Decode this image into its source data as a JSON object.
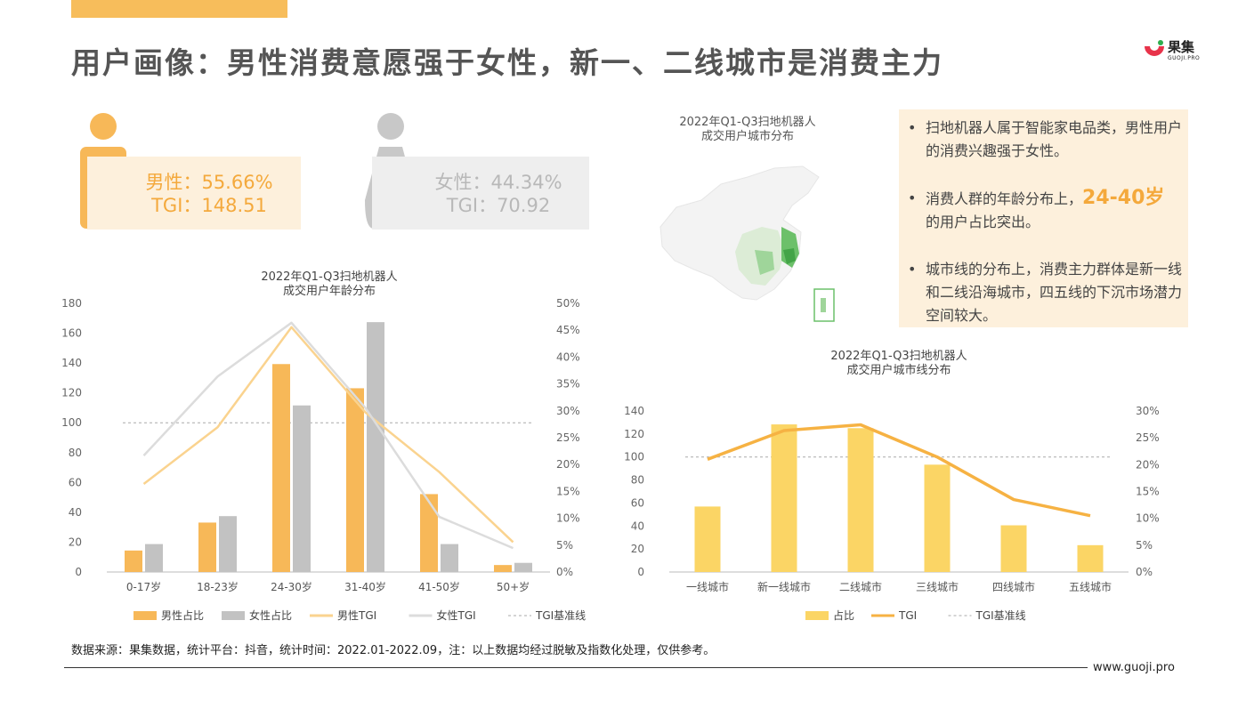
{
  "header": {
    "title": "用户画像：男性消费意愿强于女性，新一、二线城市是消费主力",
    "logo_name": "果集",
    "logo_sub": "GUOJI.PRO",
    "accent": "#f7bd5b"
  },
  "gender": {
    "male_line1": "男性：55.66%",
    "male_line2": "TGI：148.51",
    "female_line1": "女性：44.34%",
    "female_line2": "TGI：70.92",
    "male_color": "#f7b858",
    "female_color": "#c8c8c8"
  },
  "map": {
    "title_line1": "2022年Q1-Q3扫地机器人",
    "title_line2": "成交用户城市分布"
  },
  "notes": {
    "bullet": "•",
    "n1": "扫地机器人属于智能家电品类，男性用户的消费兴趣强于女性。",
    "n2_pre": "消费人群的年龄分布上，",
    "n2_hl": "24-40岁",
    "n2_post": "的用户占比突出。",
    "n3": "城市线的分布上，消费主力群体是新一线和二线沿海城市，四五线的下沉市场潜力空间较大。"
  },
  "footer": {
    "source": "数据来源：果集数据，统计平台：抖音，统计时间：2022.01-2022.09，注：以上数据均经过脱敏及指数化处理，仅供参考。",
    "site": "www.guoji.pro"
  },
  "chart_data": [
    {
      "type": "bar",
      "title_line1": "2022年Q1-Q3扫地机器人",
      "title_line2": "成交用户年龄分布",
      "categories": [
        "0-17岁",
        "18-23岁",
        "24-30岁",
        "31-40岁",
        "41-50岁",
        "50+岁"
      ],
      "y_left_ticks": [
        "180",
        "160",
        "140",
        "120",
        "100",
        "80",
        "60",
        "40",
        "20",
        "0"
      ],
      "y_right_ticks": [
        "50%",
        "45%",
        "40%",
        "35%",
        "30%",
        "25%",
        "20%",
        "15%",
        "10%",
        "5%",
        "0%"
      ],
      "ylim_left": [
        0,
        180
      ],
      "ylim_right": [
        0,
        50
      ],
      "series": [
        {
          "name": "男性占比",
          "kind": "bar",
          "axis": "right",
          "color": "#f7b858",
          "values": [
            4.0,
            9.2,
            38.7,
            34.2,
            14.5,
            1.3
          ]
        },
        {
          "name": "女性占比",
          "kind": "bar",
          "axis": "right",
          "color": "#c2c2c2",
          "values": [
            5.2,
            10.4,
            31.0,
            46.5,
            5.2,
            1.7
          ]
        },
        {
          "name": "男性TGI",
          "kind": "line",
          "axis": "left",
          "color": "#fad38f",
          "values": [
            59,
            97,
            164,
            107,
            67,
            20
          ]
        },
        {
          "name": "女性TGI",
          "kind": "line",
          "axis": "left",
          "color": "#dcdcdc",
          "values": [
            78,
            131,
            167,
            110,
            37,
            16
          ]
        }
      ],
      "baseline": {
        "name": "TGI基准线",
        "value": 100,
        "color": "#aaaaaa"
      }
    },
    {
      "type": "bar",
      "title_line1": "2022年Q1-Q3扫地机器人",
      "title_line2": "成交用户城市线分布",
      "categories": [
        "一线城市",
        "新一线城市",
        "二线城市",
        "三线城市",
        "四线城市",
        "五线城市"
      ],
      "y_left_ticks": [
        "140",
        "120",
        "100",
        "80",
        "60",
        "40",
        "20",
        "0"
      ],
      "y_right_ticks": [
        "30%",
        "25%",
        "20%",
        "15%",
        "10%",
        "5%",
        "0%"
      ],
      "ylim_left": [
        0,
        140
      ],
      "ylim_right": [
        0,
        30
      ],
      "series": [
        {
          "name": "占比",
          "kind": "bar",
          "axis": "right",
          "color": "#fbd565",
          "values": [
            12.2,
            27.5,
            26.8,
            20.0,
            8.7,
            5.0
          ]
        },
        {
          "name": "TGI",
          "kind": "line",
          "axis": "left",
          "color": "#f6b243",
          "values": [
            98,
            123,
            128,
            100,
            63,
            49
          ]
        }
      ],
      "baseline": {
        "name": "TGI基准线",
        "value": 100,
        "color": "#aaaaaa"
      }
    }
  ]
}
